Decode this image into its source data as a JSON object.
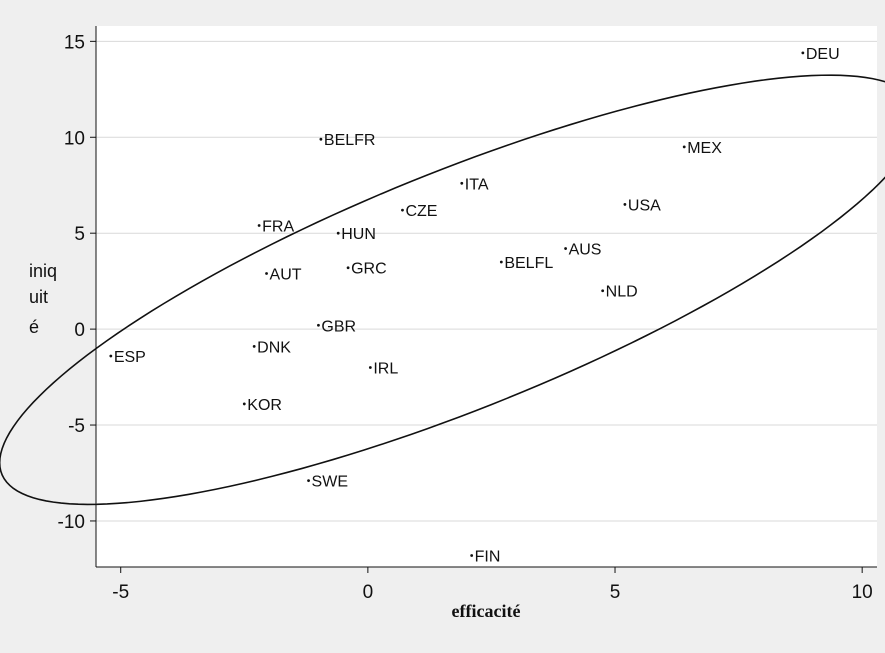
{
  "chart_data": {
    "type": "scatter",
    "xlabel": "efficacité",
    "ylabel_lines": [
      "iniq",
      "uit",
      "é"
    ],
    "xlim": [
      -5.5,
      10.3
    ],
    "ylim": [
      -12.4,
      15.8
    ],
    "x_ticks": [
      -5,
      0,
      5,
      10
    ],
    "y_ticks": [
      15,
      10,
      5,
      0,
      -5,
      -10
    ],
    "x_tick_labels": [
      "-5",
      "0",
      "5",
      "10"
    ],
    "y_tick_labels": [
      "15",
      "10",
      "5",
      "0",
      "-5",
      "-10"
    ],
    "grid": "horizontal",
    "ellipse": {
      "center": [
        1.85,
        2.05
      ],
      "angle_deg": 51.5,
      "semi_major": 13.85,
      "semi_minor": 4.45
    },
    "points": [
      {
        "label": "DEU",
        "x": 8.8,
        "y": 14.4
      },
      {
        "label": "MEX",
        "x": 6.4,
        "y": 9.5
      },
      {
        "label": "BELFR",
        "x": -0.95,
        "y": 9.9
      },
      {
        "label": "ITA",
        "x": 1.9,
        "y": 7.6
      },
      {
        "label": "USA",
        "x": 5.2,
        "y": 6.5
      },
      {
        "label": "CZE",
        "x": 0.7,
        "y": 6.2
      },
      {
        "label": "FRA",
        "x": -2.2,
        "y": 5.4
      },
      {
        "label": "HUN",
        "x": -0.6,
        "y": 5.0
      },
      {
        "label": "AUS",
        "x": 4.0,
        "y": 4.2
      },
      {
        "label": "BELFL",
        "x": 2.7,
        "y": 3.5
      },
      {
        "label": "GRC",
        "x": -0.4,
        "y": 3.2
      },
      {
        "label": "AUT",
        "x": -2.05,
        "y": 2.9
      },
      {
        "label": "NLD",
        "x": 4.75,
        "y": 2.0
      },
      {
        "label": "GBR",
        "x": -1.0,
        "y": 0.2
      },
      {
        "label": "DNK",
        "x": -2.3,
        "y": -0.9
      },
      {
        "label": "ESP",
        "x": -5.2,
        "y": -1.4
      },
      {
        "label": "IRL",
        "x": 0.05,
        "y": -2.0
      },
      {
        "label": "KOR",
        "x": -2.5,
        "y": -3.9
      },
      {
        "label": "SWE",
        "x": -1.2,
        "y": -7.9
      },
      {
        "label": "FIN",
        "x": 2.1,
        "y": -11.8
      }
    ],
    "colors": {
      "background": "#efefef",
      "plot_background": "#ffffff",
      "grid": "#d9d9d9",
      "ink": "#111111"
    }
  }
}
